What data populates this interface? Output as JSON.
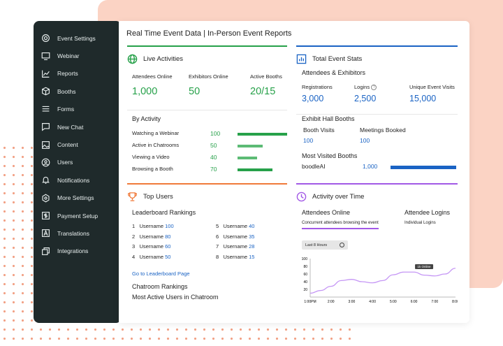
{
  "sidebar": {
    "items": [
      {
        "label": "Event Settings",
        "icon": "gear-icon"
      },
      {
        "label": "Webinar",
        "icon": "monitor-icon"
      },
      {
        "label": "Reports",
        "icon": "chart-line-icon"
      },
      {
        "label": "Booths",
        "icon": "box-icon"
      },
      {
        "label": "Forms",
        "icon": "form-icon"
      },
      {
        "label": "New Chat",
        "icon": "chat-icon"
      },
      {
        "label": "Content",
        "icon": "image-icon"
      },
      {
        "label": "Users",
        "icon": "user-icon"
      },
      {
        "label": "Notifications",
        "icon": "bell-icon"
      },
      {
        "label": "More Settings",
        "icon": "hexagon-settings-icon"
      },
      {
        "label": "Payment Setup",
        "icon": "dollar-icon"
      },
      {
        "label": "Translations",
        "icon": "translate-icon"
      },
      {
        "label": "Integrations",
        "icon": "integrations-icon"
      }
    ]
  },
  "header": {
    "title": "Real Time Event Data | In-Person Event Reports"
  },
  "live": {
    "title": "Live Activities",
    "stats": [
      {
        "label": "Attendees Online",
        "value": "1,000"
      },
      {
        "label": "Exhibitors Online",
        "value": "50"
      },
      {
        "label": "Active Booths",
        "value": "20/15"
      }
    ],
    "by_activity_title": "By Activity",
    "activities": [
      {
        "label": "Watching a Webinar",
        "value": 100
      },
      {
        "label": "Active in Chatrooms",
        "value": 50
      },
      {
        "label": "Viewing a Video",
        "value": 40
      },
      {
        "label": "Browsing a Booth",
        "value": 70
      }
    ]
  },
  "totals": {
    "title": "Total Event Stats",
    "subtitle": "Attendees & Exhibitors",
    "stats": [
      {
        "label": "Registrations",
        "value": "3,000"
      },
      {
        "label": "Logins",
        "value": "2,500"
      },
      {
        "label": "Unique Event Visits",
        "value": "15,000"
      }
    ],
    "hall_title": "Exhibit Hall Booths",
    "booth_visits_label": "Booth Visits",
    "booth_visits": "100",
    "meetings_label": "Meetings Booked",
    "meetings": "100",
    "most_visited_title": "Most Visited Booths",
    "top_booth": {
      "name": "boodleAI",
      "value": "1,000",
      "fill": 1.0
    }
  },
  "users": {
    "title": "Top Users",
    "leaderboard_title": "Leaderboard Rankings",
    "rankings": [
      {
        "rank": "1",
        "name": "Username",
        "score": "100"
      },
      {
        "rank": "2",
        "name": "Username",
        "score": "80"
      },
      {
        "rank": "3",
        "name": "Username",
        "score": "60"
      },
      {
        "rank": "4",
        "name": "Username",
        "score": "50"
      },
      {
        "rank": "5",
        "name": "Username",
        "score": "40"
      },
      {
        "rank": "6",
        "name": "Username",
        "score": "35"
      },
      {
        "rank": "7",
        "name": "Username",
        "score": "28"
      },
      {
        "rank": "8",
        "name": "Username",
        "score": "15"
      }
    ],
    "leaderboard_link": "Go to Leaderboard Page",
    "chatroom_title": "Chatroom Rankings",
    "active_users_title": "Most Active Users in Chatroom"
  },
  "activity": {
    "title": "Activity over Time",
    "tab_attendees": "Attendees Online",
    "tab_attendees_sub": "Concurrent attendees browsing the event",
    "tab_logins": "Attendee Logins",
    "tab_logins_sub": "Individual Logins",
    "range_label": "Last 8 Hours",
    "tooltip": "1k Online"
  },
  "colors": {
    "green": "#27a14a",
    "blue": "#1a63c4",
    "orange": "#f07a3a",
    "purple": "#a259e6",
    "line": "#c596f5"
  },
  "chart_data": {
    "type": "line",
    "categories": [
      "1:00PM",
      "2:00",
      "3:00",
      "4:00",
      "5:00",
      "6:00",
      "7:00",
      "8:00"
    ],
    "x": [
      0,
      0.5,
      1,
      1.5,
      2,
      2.5,
      3,
      3.5,
      4,
      4.5,
      5,
      5.5,
      6,
      6.5,
      7
    ],
    "values": [
      10,
      17,
      28,
      43,
      46,
      40,
      37,
      43,
      58,
      65,
      65,
      57,
      55,
      60,
      75
    ],
    "yticks": [
      20,
      40,
      60,
      80,
      100
    ],
    "ylim": [
      0,
      100
    ],
    "grid": false
  }
}
